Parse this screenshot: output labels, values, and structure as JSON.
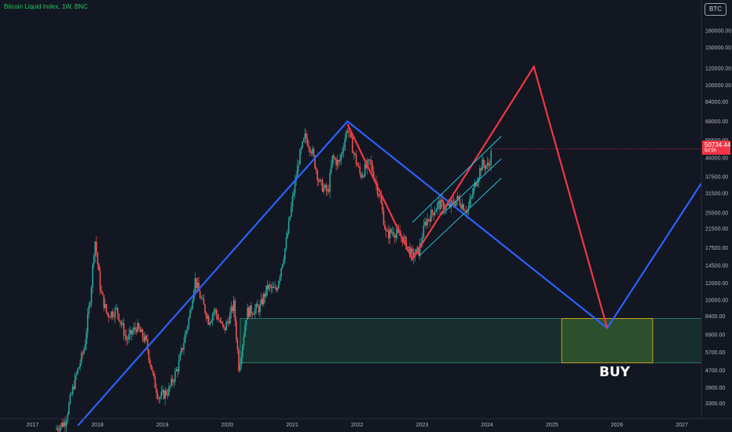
{
  "header": {
    "title": "Bitcoin Liquid Index, 1W, BNC",
    "currency_badge": "BTC"
  },
  "last_price": {
    "value": "50734.44",
    "countdown": "5d 5h"
  },
  "annotation": {
    "buy_label": "BUY"
  },
  "colors": {
    "background": "#131722",
    "up": "#26a69a",
    "down": "#ef5350",
    "blue_path": "#2962ff",
    "red_path": "#f23645",
    "channel": "#22c3d6",
    "zone": "#1b4d3e",
    "buy_box": "#c9a227"
  },
  "chart_data": {
    "type": "candlestick",
    "title": "Bitcoin Liquid Index, 1W, BNC",
    "x_ticks": [
      "2017",
      "2018",
      "2019",
      "2020",
      "2021",
      "2022",
      "2023",
      "2024",
      "2025",
      "2026",
      "2027"
    ],
    "y_scale": "log",
    "y_ticks": [
      3300,
      3900,
      4700,
      5700,
      6900,
      8400,
      10000,
      12000,
      14500,
      17500,
      21500,
      25500,
      31500,
      37500,
      46000,
      55500,
      68000,
      84000,
      100000,
      120000,
      150000,
      180000
    ],
    "y_tick_labels": [
      "3300.00",
      "3900.00",
      "4700.00",
      "5700.00",
      "6900.00",
      "8400.00",
      "10000.00",
      "12000.00",
      "14500.00",
      "17500.00",
      "21500.00",
      "25500.00",
      "31500.00",
      "37500.00",
      "46000.00",
      "55500.00",
      "68000.00",
      "84000.00",
      "100000.00",
      "120000.00",
      "150000.00",
      "180000.00"
    ],
    "ylim": [
      2800,
      250000
    ],
    "xlim": [
      2016.5,
      2027.3
    ],
    "price_path": [
      [
        2017.35,
        2500
      ],
      [
        2017.5,
        2700
      ],
      [
        2017.65,
        4200
      ],
      [
        2017.8,
        6000
      ],
      [
        2017.9,
        11000
      ],
      [
        2017.96,
        19500
      ],
      [
        2018.05,
        11000
      ],
      [
        2018.15,
        8500
      ],
      [
        2018.3,
        9000
      ],
      [
        2018.45,
        6500
      ],
      [
        2018.6,
        7500
      ],
      [
        2018.75,
        6400
      ],
      [
        2018.87,
        4200
      ],
      [
        2018.95,
        3500
      ],
      [
        2019.1,
        3800
      ],
      [
        2019.25,
        5000
      ],
      [
        2019.42,
        8500
      ],
      [
        2019.5,
        12500
      ],
      [
        2019.6,
        10000
      ],
      [
        2019.72,
        8000
      ],
      [
        2019.8,
        9000
      ],
      [
        2019.95,
        7200
      ],
      [
        2020.1,
        9500
      ],
      [
        2020.18,
        4800
      ],
      [
        2020.3,
        8800
      ],
      [
        2020.5,
        9200
      ],
      [
        2020.62,
        11500
      ],
      [
        2020.75,
        11000
      ],
      [
        2020.9,
        18000
      ],
      [
        2021.0,
        29000
      ],
      [
        2021.1,
        45000
      ],
      [
        2021.2,
        58000
      ],
      [
        2021.3,
        50000
      ],
      [
        2021.42,
        35000
      ],
      [
        2021.55,
        31500
      ],
      [
        2021.62,
        46000
      ],
      [
        2021.72,
        43000
      ],
      [
        2021.85,
        64000
      ],
      [
        2021.95,
        48000
      ],
      [
        2022.05,
        38000
      ],
      [
        2022.2,
        44000
      ],
      [
        2022.35,
        30000
      ],
      [
        2022.45,
        20000
      ],
      [
        2022.55,
        21000
      ],
      [
        2022.7,
        19500
      ],
      [
        2022.85,
        16000
      ],
      [
        2022.95,
        17000
      ],
      [
        2023.05,
        23000
      ],
      [
        2023.25,
        28000
      ],
      [
        2023.4,
        27000
      ],
      [
        2023.55,
        29500
      ],
      [
        2023.7,
        26000
      ],
      [
        2023.82,
        35000
      ],
      [
        2023.92,
        43000
      ],
      [
        2024.02,
        42000
      ],
      [
        2024.08,
        50734
      ]
    ],
    "blue_path": [
      [
        2017.7,
        2600
      ],
      [
        2021.85,
        68000
      ],
      [
        2025.85,
        7400
      ],
      [
        2027.3,
        35000
      ]
    ],
    "red_path": [
      [
        2021.85,
        66000
      ],
      [
        2022.85,
        15500
      ],
      [
        2024.72,
        122000
      ],
      [
        2025.85,
        7400
      ]
    ],
    "channel_lines": [
      [
        [
          2022.85,
          23000
        ],
        [
          2024.22,
          58000
        ]
      ],
      [
        [
          2022.95,
          16000
        ],
        [
          2024.22,
          37000
        ]
      ],
      [
        [
          2023.3,
          25000
        ],
        [
          2024.22,
          45500
        ]
      ]
    ],
    "zone": {
      "x": [
        2020.2,
        2027.3
      ],
      "y": [
        5100,
        8200
      ]
    },
    "buy_box": {
      "x": [
        2025.15,
        2026.55
      ],
      "y": [
        5100,
        8200
      ]
    },
    "last_value": 50734.44
  }
}
